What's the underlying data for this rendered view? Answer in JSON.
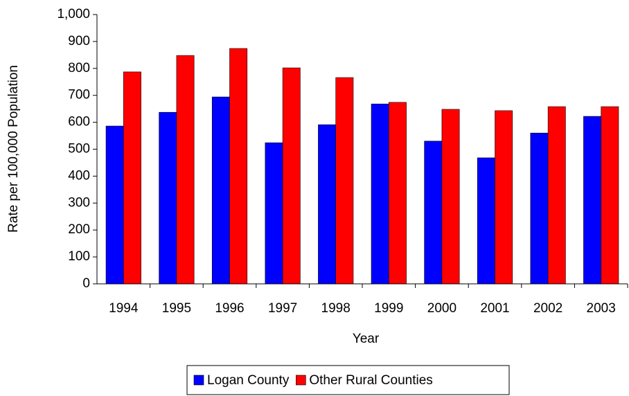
{
  "chart_data": {
    "type": "bar",
    "y_label": "Rate per 100,000 Population",
    "x_label": "Year",
    "categories": [
      "1994",
      "1995",
      "1996",
      "1997",
      "1998",
      "1999",
      "2000",
      "2001",
      "2002",
      "2003"
    ],
    "series": [
      {
        "name": "Logan  County",
        "color": "#0000ff",
        "values": [
          586,
          637,
          694,
          524,
          591,
          668,
          530,
          468,
          560,
          622
        ]
      },
      {
        "name": "Other Rural Counties",
        "color": "#ff0000",
        "values": [
          787,
          848,
          874,
          802,
          766,
          674,
          648,
          643,
          658,
          658
        ]
      }
    ],
    "ylim": [
      0,
      1000
    ],
    "yticks": [
      0,
      100,
      200,
      300,
      400,
      500,
      600,
      700,
      800,
      900,
      {
        "value": 1000,
        "label": "1,000"
      }
    ],
    "grid": false,
    "legend": "bottom"
  }
}
